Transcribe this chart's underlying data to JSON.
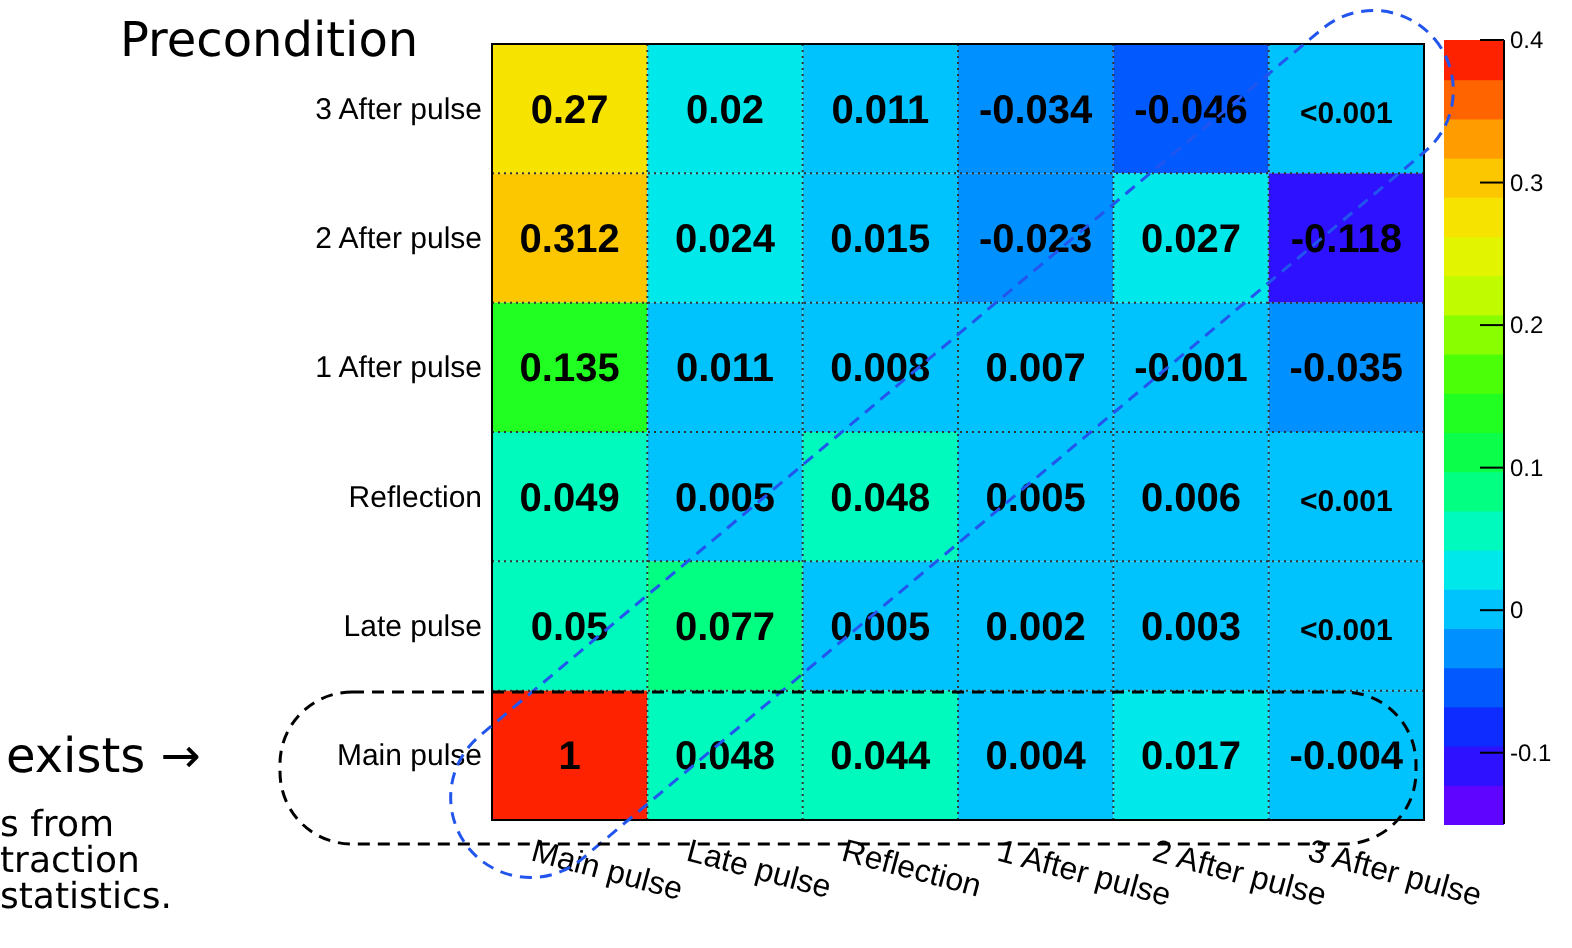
{
  "chart_data": {
    "type": "heatmap",
    "title": "Precondition",
    "annotations": [
      "exists →",
      "s from\ntraction\nstatistics."
    ],
    "categories": [
      "Main pulse",
      "Late pulse",
      "Reflection",
      "1 After pulse",
      "2 After pulse",
      "3 After pulse"
    ],
    "y_categories": [
      "3 After pulse",
      "2 After pulse",
      "1 After pulse",
      "Reflection",
      "Late pulse",
      "Main pulse"
    ],
    "cells": [
      [
        0.27,
        0.02,
        0.011,
        -0.034,
        -0.046,
        0
      ],
      [
        0.312,
        0.024,
        0.015,
        -0.023,
        0.027,
        -0.118
      ],
      [
        0.135,
        0.011,
        0.008,
        0.007,
        -0.001,
        -0.035
      ],
      [
        0.049,
        0.005,
        0.048,
        0.005,
        0.006,
        0
      ],
      [
        0.05,
        0.077,
        0.005,
        0.002,
        0.003,
        0
      ],
      [
        1,
        0.048,
        0.044,
        0.004,
        0.017,
        -0.004
      ]
    ],
    "cell_labels": [
      [
        "0.27",
        "0.02",
        "0.011",
        "-0.034",
        "-0.046",
        "<0.001"
      ],
      [
        "0.312",
        "0.024",
        "0.015",
        "-0.023",
        "0.027",
        "-0.118"
      ],
      [
        "0.135",
        "0.011",
        "0.008",
        "0.007",
        "-0.001",
        "-0.035"
      ],
      [
        "0.049",
        "0.005",
        "0.048",
        "0.005",
        "0.006",
        "<0.001"
      ],
      [
        "0.05",
        "0.077",
        "0.005",
        "0.002",
        "0.003",
        "<0.001"
      ],
      [
        "1",
        "0.048",
        "0.044",
        "0.004",
        "0.017",
        "-0.004"
      ]
    ],
    "data_labels": true,
    "clim": [
      -0.15,
      0.4
    ],
    "cticks": [
      -0.1,
      0,
      0.1,
      0.2,
      0.3,
      0.4
    ]
  }
}
